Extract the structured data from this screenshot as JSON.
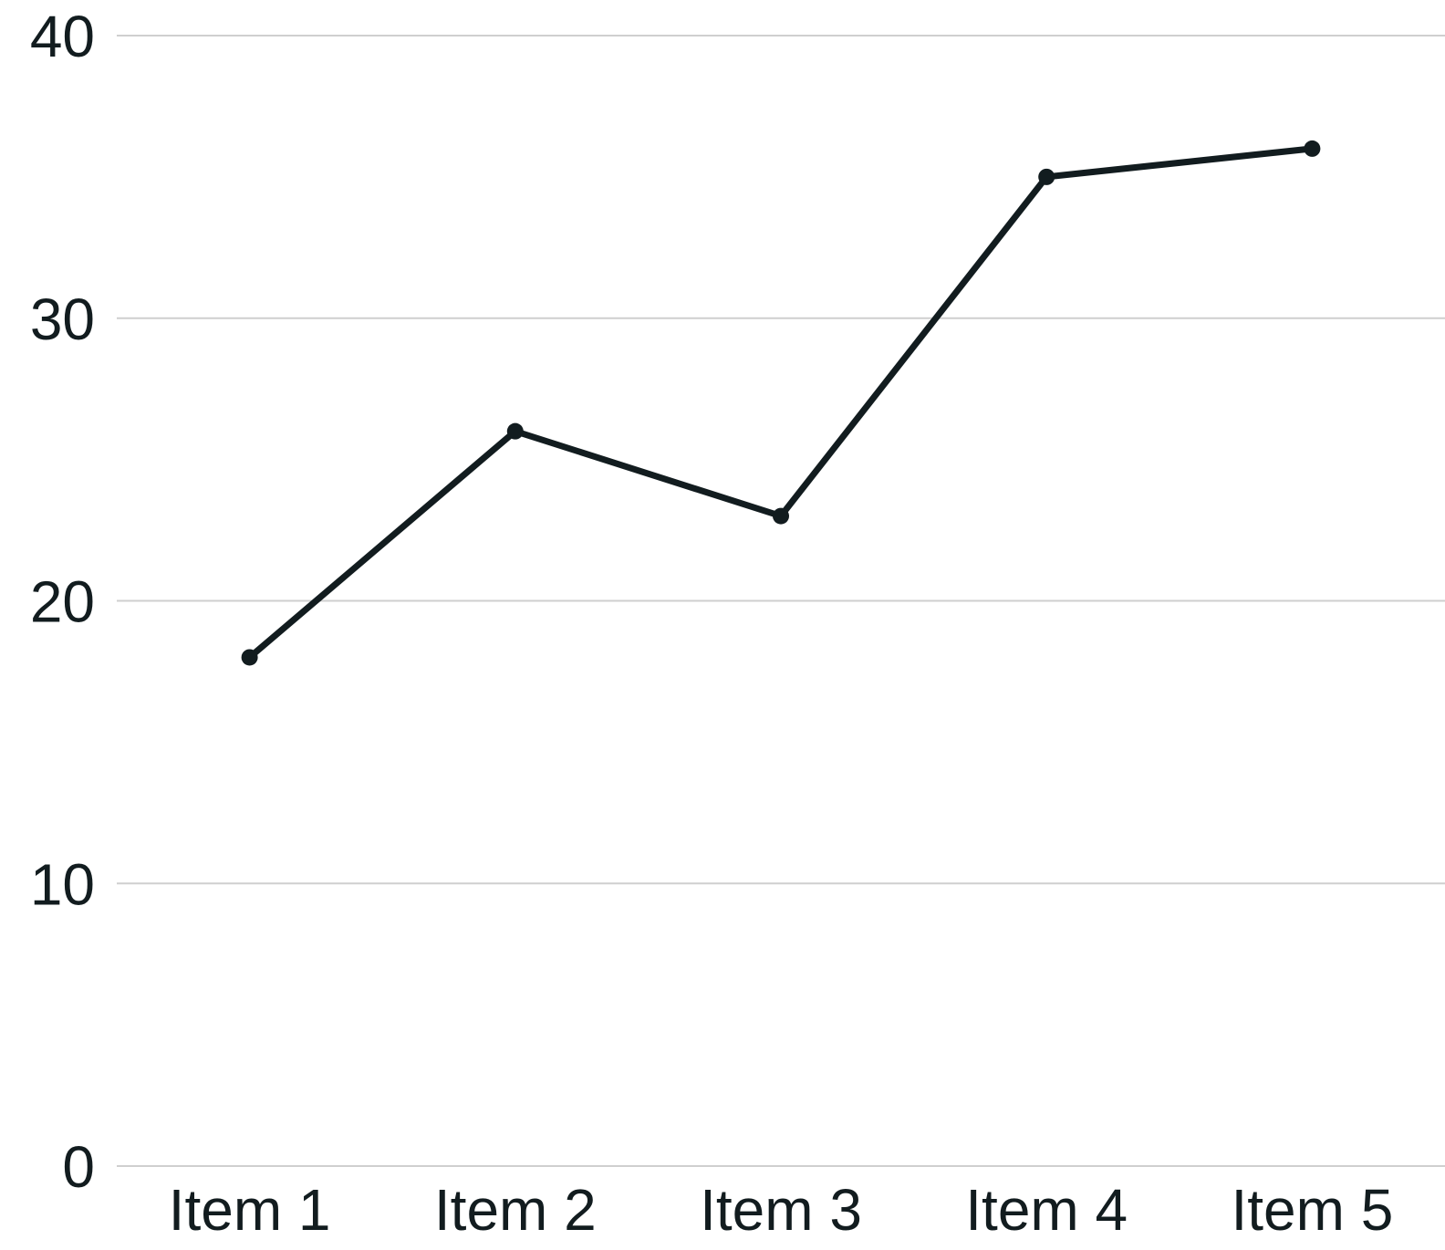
{
  "colors": {
    "line": "#121c1f",
    "text": "#121c1f",
    "grid": "#cfcfcf",
    "background": "#ffffff"
  },
  "chart_data": {
    "type": "line",
    "title": "",
    "xlabel": "",
    "ylabel": "",
    "categories": [
      "Item 1",
      "Item 2",
      "Item 3",
      "Item 4",
      "Item 5"
    ],
    "series": [
      {
        "values": [
          18,
          26,
          23,
          35,
          36
        ]
      }
    ],
    "ylim": [
      0,
      40
    ],
    "yticks": [
      0,
      10,
      20,
      30,
      40
    ],
    "grid": true,
    "legend": "none",
    "markers": true
  }
}
